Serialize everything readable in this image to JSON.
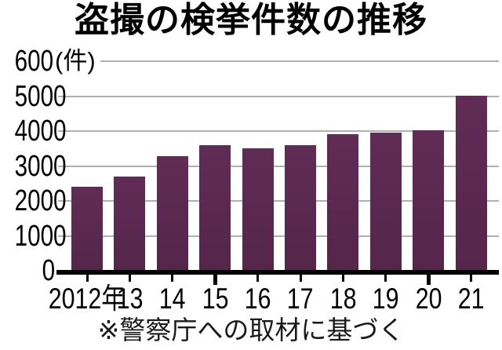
{
  "title": "盗撮の検挙件数の推移",
  "y_axis_unit": "(件)",
  "source_note": "※警察庁への取材に基づく",
  "chart_data": {
    "type": "bar",
    "title": "盗撮の検挙件数の推移",
    "categories": [
      "2012年",
      "13",
      "14",
      "15",
      "16",
      "17",
      "18",
      "19",
      "20",
      "21"
    ],
    "values": [
      2400,
      2700,
      3270,
      3600,
      3500,
      3590,
      3920,
      3950,
      4030,
      5020
    ],
    "xlabel": "",
    "ylabel": "(件)",
    "ylim": [
      0,
      6000
    ],
    "y_ticks": [
      0,
      1000,
      2000,
      3000,
      4000,
      5000,
      6000
    ],
    "grid": true,
    "legend": "none",
    "major_x_ticks": [
      "15",
      "20"
    ],
    "note": "※警察庁への取材に基づく",
    "colors": {
      "bar_top": "#602c56",
      "bar_bottom": "#55254a",
      "gridline": "#b0b0b0",
      "axis": "#000000",
      "text": "#000000",
      "background": "#ffffff"
    }
  }
}
